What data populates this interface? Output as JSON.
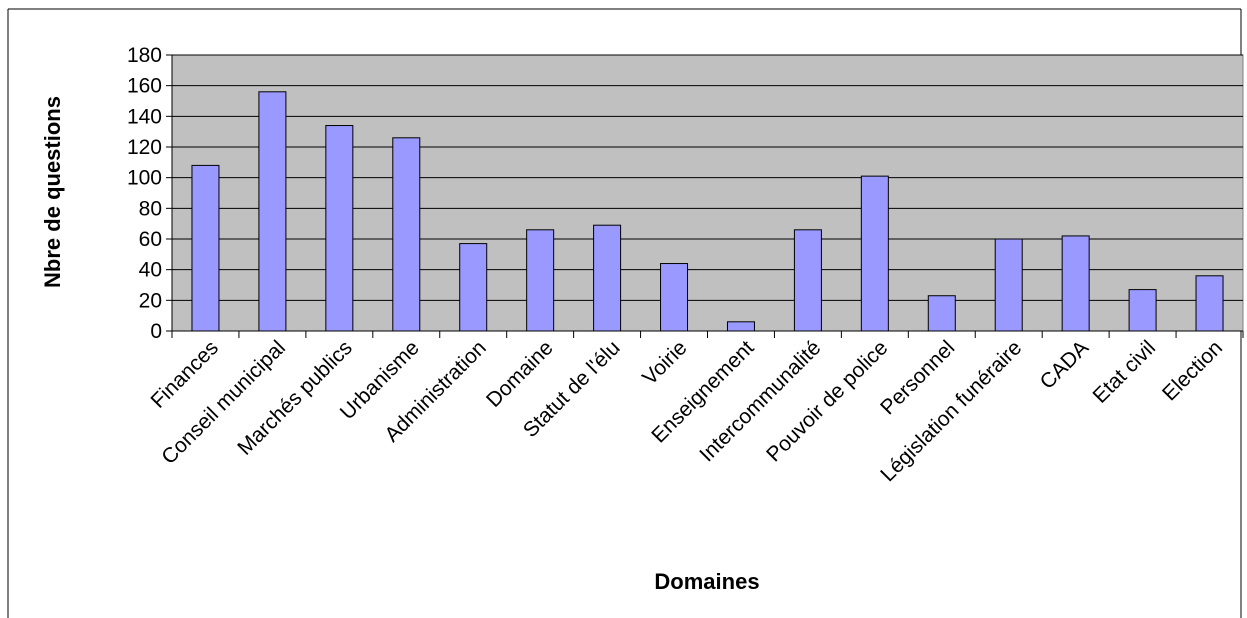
{
  "chart_data": {
    "type": "bar",
    "xlabel": "Domaines",
    "ylabel": "Nbre de questions",
    "ylim": [
      0,
      180
    ],
    "yticks": [
      0,
      20,
      40,
      60,
      80,
      100,
      120,
      140,
      160,
      180
    ],
    "grid": true,
    "legend": "none",
    "colors": {
      "bar": "#9999ff",
      "plot_bg": "#c0c0c0",
      "border": "#000000"
    },
    "categories": [
      "Finances",
      "Conseil municipal",
      "Marchés publics",
      "Urbanisme",
      "Administration",
      "Domaine",
      "Statut de l'élu",
      "Voirie",
      "Enseignement",
      "Intercommunalité",
      "Pouvoir de police",
      "Personnel",
      "Législation funéraire",
      "CADA",
      "Etat civil",
      "Election"
    ],
    "values": [
      108,
      156,
      134,
      126,
      57,
      66,
      69,
      44,
      6,
      66,
      101,
      23,
      60,
      62,
      27,
      36
    ]
  }
}
